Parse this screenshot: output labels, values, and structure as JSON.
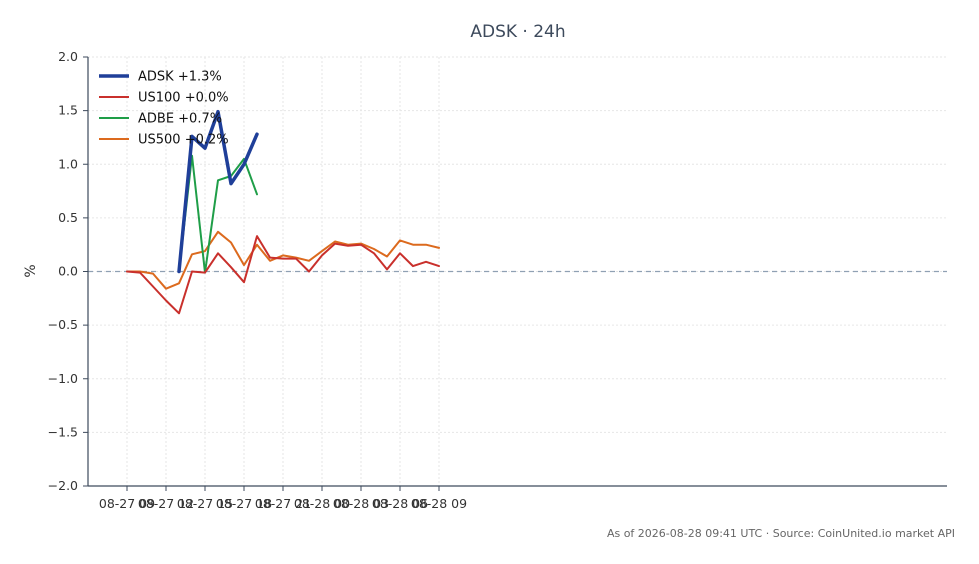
{
  "chart_data": {
    "type": "line",
    "title": "ADSK · 24h",
    "ylabel": "%",
    "xlabel": "",
    "ylim": [
      -2.0,
      2.0
    ],
    "yticks": [
      2.0,
      1.5,
      1.0,
      0.5,
      0.0,
      -0.5,
      -1.0,
      -1.5,
      -2.0
    ],
    "ytick_labels": [
      "2.0",
      "1.5",
      "1.0",
      "0.5",
      "0.0",
      "−0.5",
      "−1.0",
      "−1.5",
      "−2.0"
    ],
    "x_ticks": [
      "08-27 09",
      "08-27 12",
      "08-27 15",
      "08-27 18",
      "08-27 21",
      "08-28 00",
      "08-28 03",
      "08-28 06",
      "08-28 09"
    ],
    "x_hours": [
      "08-27 09",
      "08-27 10",
      "08-27 11",
      "08-27 12",
      "08-27 13",
      "08-27 14",
      "08-27 15",
      "08-27 16",
      "08-27 17",
      "08-27 18",
      "08-27 19",
      "08-27 20",
      "08-27 21",
      "08-27 22",
      "08-27 23",
      "08-28 00",
      "08-28 01",
      "08-28 02",
      "08-28 03",
      "08-28 04",
      "08-28 05",
      "08-28 06",
      "08-28 07",
      "08-28 08",
      "08-28 09"
    ],
    "grid": true,
    "zero_line": true,
    "legend_position": "top-left",
    "series": [
      {
        "name": "ADSK +1.3%",
        "color": "#1f3f99",
        "width": 3.5,
        "values": [
          null,
          null,
          null,
          null,
          0.0,
          1.26,
          1.15,
          1.49,
          0.82,
          1.0,
          1.28,
          null,
          null,
          null,
          null,
          null,
          null,
          null,
          null,
          null,
          null,
          null,
          null,
          null,
          null
        ]
      },
      {
        "name": "US100 +0.0%",
        "color": "#c9302c",
        "width": 2,
        "values": [
          0.0,
          -0.01,
          -0.14,
          -0.27,
          -0.39,
          0.0,
          -0.01,
          0.17,
          0.04,
          -0.1,
          0.33,
          0.13,
          0.12,
          0.12,
          0.0,
          0.15,
          0.26,
          0.24,
          0.25,
          0.17,
          0.02,
          0.17,
          0.05,
          0.09,
          0.05
        ]
      },
      {
        "name": "ADBE +0.7%",
        "color": "#1f9e48",
        "width": 2,
        "values": [
          null,
          null,
          null,
          null,
          0.0,
          1.08,
          -0.01,
          0.85,
          0.89,
          1.05,
          0.72,
          null,
          null,
          null,
          null,
          null,
          null,
          null,
          null,
          null,
          null,
          null,
          null,
          null,
          null
        ]
      },
      {
        "name": "US500 +0.2%",
        "color": "#dc6a1e",
        "width": 2,
        "values": [
          0.0,
          0.0,
          -0.02,
          -0.16,
          -0.11,
          0.16,
          0.19,
          0.37,
          0.27,
          0.06,
          0.25,
          0.1,
          0.15,
          0.13,
          0.1,
          0.19,
          0.28,
          0.25,
          0.26,
          0.21,
          0.14,
          0.29,
          0.25,
          0.25,
          0.22
        ]
      }
    ]
  },
  "footer": "As of 2026-08-28 09:41 UTC · Source: CoinUnited.io market API",
  "colors": {
    "axis": "#3d4a5c",
    "grid": "#e6e6e6",
    "zero_line": "#8fa0b3"
  }
}
